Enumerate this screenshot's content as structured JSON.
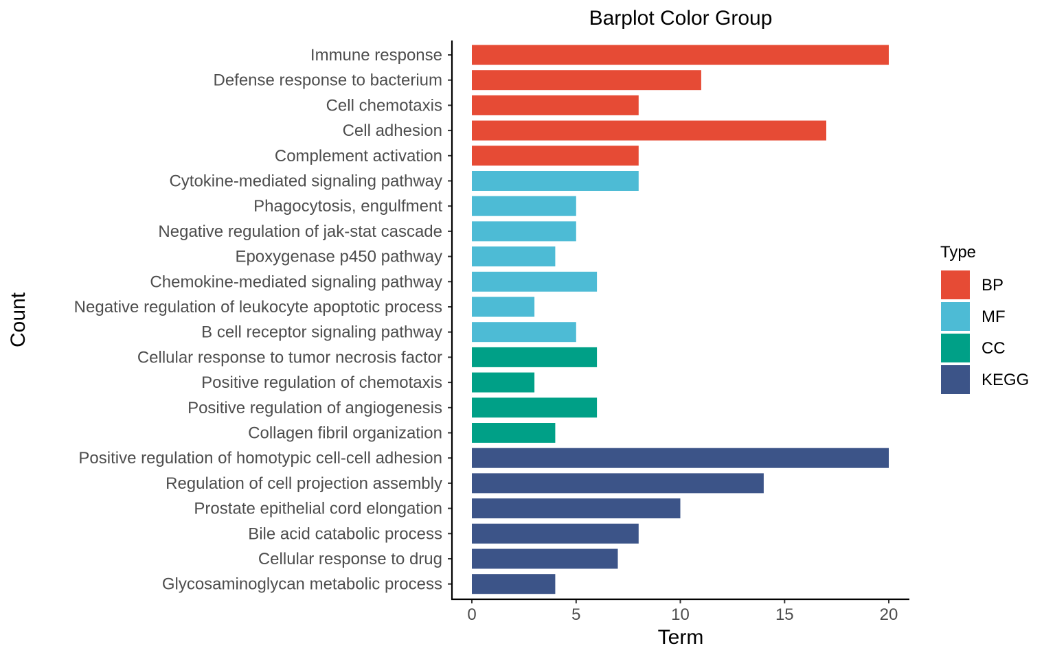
{
  "chart_data": {
    "type": "bar",
    "orientation": "horizontal",
    "title": "Barplot Color Group",
    "xlabel": "Term",
    "ylabel": "Count",
    "xlim": [
      0,
      21
    ],
    "xticks": [
      0,
      5,
      10,
      15,
      20
    ],
    "grid": false,
    "legend": {
      "title": "Type",
      "position": "right",
      "entries": [
        {
          "label": "BP",
          "color": "#E64B35"
        },
        {
          "label": "MF",
          "color": "#4DBBD5"
        },
        {
          "label": "CC",
          "color": "#00A087"
        },
        {
          "label": "KEGG",
          "color": "#3C5488"
        }
      ]
    },
    "categories": [
      "Immune response",
      "Defense response to bacterium",
      "Cell chemotaxis",
      "Cell adhesion",
      "Complement activation",
      "Cytokine-mediated signaling pathway",
      "Phagocytosis, engulfment",
      "Negative regulation of jak-stat cascade",
      "Epoxygenase p450 pathway",
      "Chemokine-mediated signaling pathway",
      "Negative regulation of leukocyte apoptotic process",
      "B cell receptor signaling pathway",
      "Cellular response to tumor necrosis factor",
      "Positive regulation of chemotaxis",
      "Positive regulation of angiogenesis",
      "Collagen fibril organization",
      "Positive regulation of homotypic cell-cell adhesion",
      "Regulation of cell projection assembly",
      "Prostate epithelial cord elongation",
      "Bile acid catabolic process",
      "Cellular response to drug",
      "Glycosaminoglycan metabolic process"
    ],
    "values": [
      20,
      11,
      8,
      17,
      8,
      8,
      5,
      5,
      4,
      6,
      3,
      5,
      6,
      3,
      6,
      4,
      20,
      14,
      10,
      8,
      7,
      4
    ],
    "groups": [
      "BP",
      "BP",
      "BP",
      "BP",
      "BP",
      "MF",
      "MF",
      "MF",
      "MF",
      "MF",
      "MF",
      "MF",
      "CC",
      "CC",
      "CC",
      "CC",
      "KEGG",
      "KEGG",
      "KEGG",
      "KEGG",
      "KEGG",
      "KEGG"
    ]
  }
}
